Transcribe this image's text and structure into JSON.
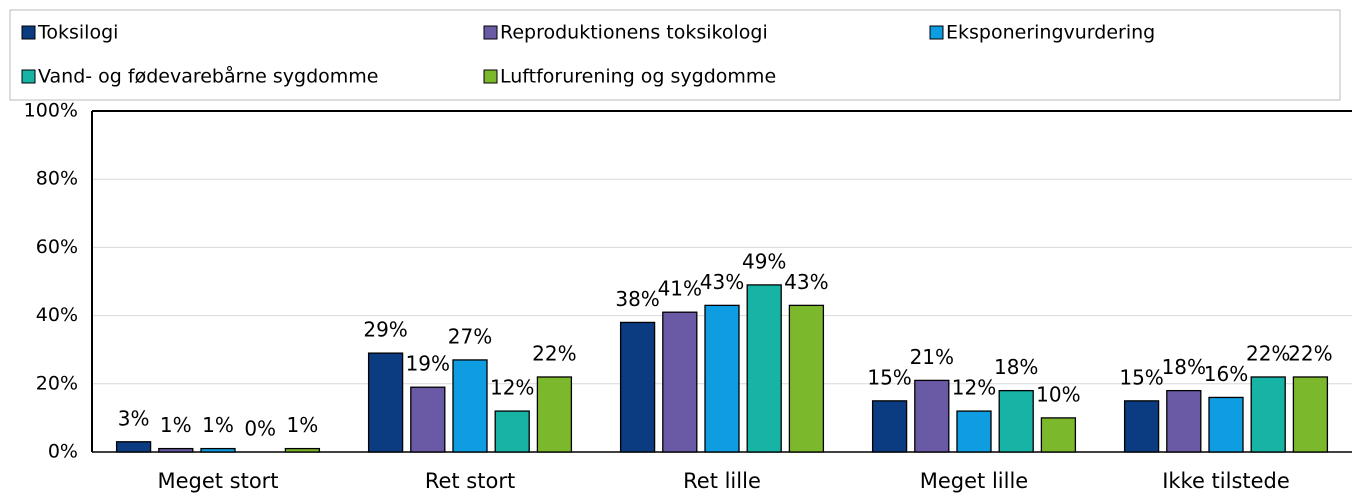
{
  "chart_data": {
    "type": "bar",
    "categories": [
      "Meget stort",
      "Ret stort",
      "Ret lille",
      "Meget lille",
      "Ikke tilstede"
    ],
    "series": [
      {
        "name": "Toksilogi",
        "color": "#0b3b80",
        "values": [
          3,
          29,
          38,
          15,
          15
        ],
        "value_labels": [
          "3%",
          "29%",
          "38%",
          "15%",
          "15%"
        ]
      },
      {
        "name": "Reproduktionens toksikologi",
        "color": "#6a5aa6",
        "values": [
          1,
          19,
          41,
          21,
          18
        ],
        "value_labels": [
          "1%",
          "19%",
          "41%",
          "21%",
          "18%"
        ]
      },
      {
        "name": "Eksponeringvurdering",
        "color": "#0d9de0",
        "values": [
          1,
          27,
          43,
          12,
          16
        ],
        "value_labels": [
          "1%",
          "27%",
          "43%",
          "12%",
          "16%"
        ]
      },
      {
        "name": "Vand- og fødevarebårne sygdomme",
        "color": "#17b4a6",
        "values": [
          0,
          12,
          49,
          18,
          22
        ],
        "value_labels": [
          "0%",
          "12%",
          "49%",
          "18%",
          "22%"
        ]
      },
      {
        "name": "Luftforurening og sygdomme",
        "color": "#7cb82c",
        "values": [
          1,
          22,
          43,
          10,
          22
        ],
        "value_labels": [
          "1%",
          "22%",
          "43%",
          "10%",
          "22%"
        ]
      }
    ],
    "ylim": [
      0,
      100
    ],
    "yticks": [
      {
        "value": 0,
        "label": "0%"
      },
      {
        "value": 20,
        "label": "20%"
      },
      {
        "value": 40,
        "label": "40%"
      },
      {
        "value": 60,
        "label": "60%"
      },
      {
        "value": 80,
        "label": "80%"
      },
      {
        "value": 100,
        "label": "100%"
      }
    ],
    "grid": true,
    "legend": "top"
  }
}
